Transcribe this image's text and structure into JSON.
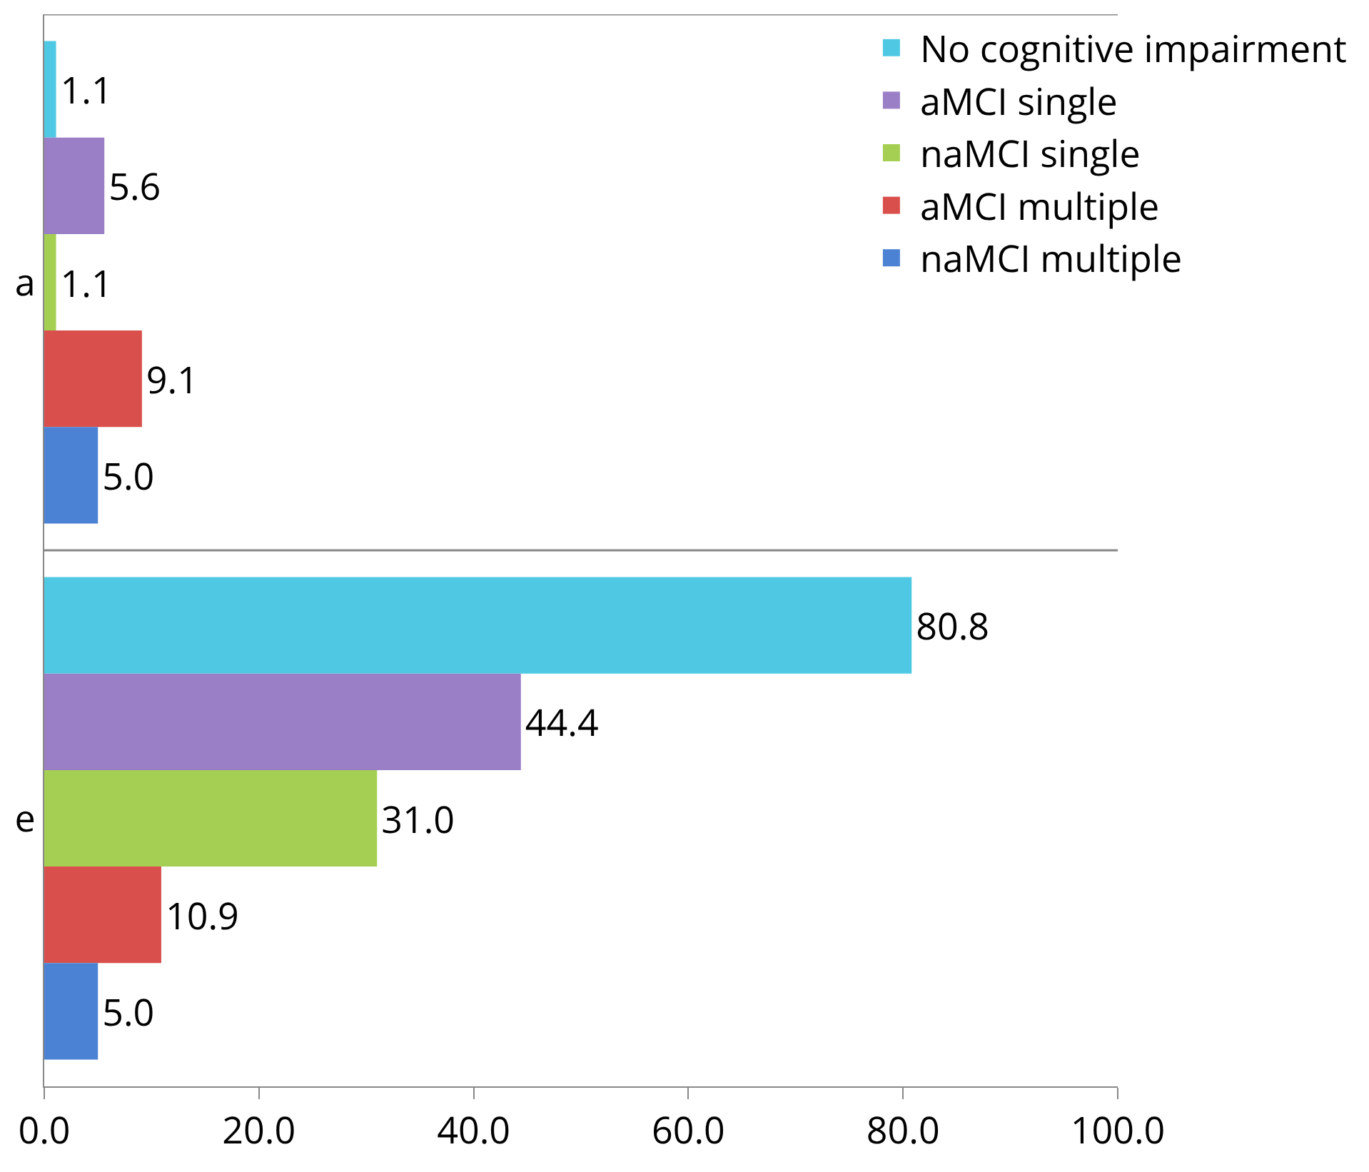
{
  "chart_data": {
    "type": "bar",
    "orientation": "horizontal",
    "categories": [
      "a",
      "e"
    ],
    "series": [
      {
        "name": "No cognitive impairment",
        "color": "#4fc9e3",
        "values": [
          1.1,
          80.8
        ],
        "value_labels": [
          "1.1",
          "80.8"
        ]
      },
      {
        "name": "aMCI single",
        "color": "#9a7fc6",
        "values": [
          5.6,
          44.4
        ],
        "value_labels": [
          "5.6",
          "44.4"
        ]
      },
      {
        "name": "naMCI single",
        "color": "#a5cf52",
        "values": [
          1.1,
          31.0
        ],
        "value_labels": [
          "1.1",
          "31.0"
        ]
      },
      {
        "name": "aMCI multiple",
        "color": "#d94f4c",
        "values": [
          9.1,
          10.9
        ],
        "value_labels": [
          "9.1",
          "10.9"
        ]
      },
      {
        "name": "naMCI multiple",
        "color": "#4b82d3",
        "values": [
          5.0,
          5.0
        ],
        "value_labels": [
          "5.0",
          "5.0"
        ]
      }
    ],
    "xlim": [
      0,
      100
    ],
    "xticks": [
      {
        "value": 0,
        "label": "0.0"
      },
      {
        "value": 20,
        "label": "20.0"
      },
      {
        "value": 40,
        "label": "40.0"
      },
      {
        "value": 60,
        "label": "60.0"
      },
      {
        "value": 80,
        "label": "80.0"
      },
      {
        "value": 100,
        "label": "100.0"
      }
    ],
    "grid": "y",
    "legend": "top right"
  }
}
